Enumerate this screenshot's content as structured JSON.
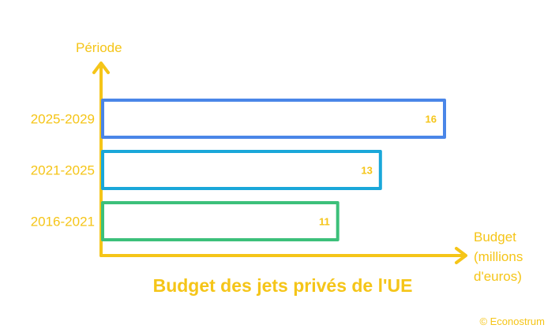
{
  "chart_data": {
    "type": "bar",
    "orientation": "horizontal",
    "title": "Budget des jets privés de l'UE",
    "ylabel": "Période",
    "xlabel": [
      "Budget",
      "(millions",
      "d'euros)"
    ],
    "categories": [
      "2025-2029",
      "2021-2025",
      "2016-2021"
    ],
    "values": [
      16,
      13,
      11
    ],
    "bar_colors": [
      "#4a86e8",
      "#1aa7d9",
      "#3cc07a"
    ],
    "data_labels": [
      "16",
      "13",
      "11"
    ],
    "xlim": [
      0,
      16
    ],
    "grid": false,
    "legend": "none"
  },
  "colors": {
    "accent": "#f5c518"
  },
  "credit": "© Econostrum"
}
